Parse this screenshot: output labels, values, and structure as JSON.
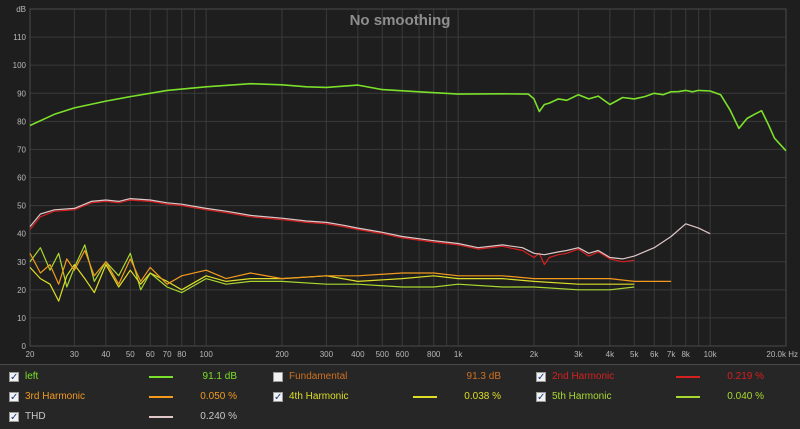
{
  "chart_data": {
    "type": "line",
    "title": "No smoothing",
    "ylabel": "dB",
    "xlabel": "Hz",
    "xscale": "log",
    "xlim": [
      20,
      20000
    ],
    "ylim": [
      0,
      120
    ],
    "x_ticks": [
      {
        "v": 20,
        "label": "20"
      },
      {
        "v": 30,
        "label": "30"
      },
      {
        "v": 40,
        "label": "40"
      },
      {
        "v": 50,
        "label": "50"
      },
      {
        "v": 60,
        "label": "60"
      },
      {
        "v": 70,
        "label": "70"
      },
      {
        "v": 80,
        "label": "80"
      },
      {
        "v": 100,
        "label": "100"
      },
      {
        "v": 200,
        "label": "200"
      },
      {
        "v": 300,
        "label": "300"
      },
      {
        "v": 400,
        "label": "400"
      },
      {
        "v": 500,
        "label": "500"
      },
      {
        "v": 600,
        "label": "600"
      },
      {
        "v": 800,
        "label": "800"
      },
      {
        "v": 1000,
        "label": "1k"
      },
      {
        "v": 2000,
        "label": "2k"
      },
      {
        "v": 3000,
        "label": "3k"
      },
      {
        "v": 4000,
        "label": "4k"
      },
      {
        "v": 5000,
        "label": "5k"
      },
      {
        "v": 6000,
        "label": "6k"
      },
      {
        "v": 7000,
        "label": "7k"
      },
      {
        "v": 8000,
        "label": "8k"
      },
      {
        "v": 10000,
        "label": "10k"
      },
      {
        "v": 20000,
        "label": "20.0k Hz"
      }
    ],
    "y_ticks": [
      {
        "v": 0,
        "label": "0"
      },
      {
        "v": 10,
        "label": "10"
      },
      {
        "v": 20,
        "label": "20"
      },
      {
        "v": 30,
        "label": "30"
      },
      {
        "v": 40,
        "label": "40"
      },
      {
        "v": 50,
        "label": "50"
      },
      {
        "v": 60,
        "label": "60"
      },
      {
        "v": 70,
        "label": "70"
      },
      {
        "v": 80,
        "label": "80"
      },
      {
        "v": 90,
        "label": "90"
      },
      {
        "v": 100,
        "label": "100"
      },
      {
        "v": 110,
        "label": "110"
      },
      {
        "v": 120,
        "label": "dB"
      }
    ],
    "grid": true,
    "legend_position": "bottom",
    "series": [
      {
        "name": "left",
        "color": "#7be02a",
        "value": "91.1 dB",
        "checked": true,
        "x": [
          20,
          25,
          30,
          40,
          50,
          70,
          100,
          150,
          200,
          250,
          300,
          400,
          500,
          700,
          1000,
          1500,
          1900,
          2000,
          2100,
          2200,
          2300,
          2500,
          2700,
          3000,
          3300,
          3600,
          4000,
          4500,
          5000,
          5500,
          6000,
          6500,
          7000,
          7500,
          8000,
          8500,
          9000,
          10000,
          11000,
          12000,
          13000,
          14000,
          15000,
          16000,
          17000,
          18000,
          20000
        ],
        "y": [
          78.5,
          82.5,
          84.8,
          87.2,
          88.8,
          91,
          92.3,
          93.4,
          93,
          92.3,
          92.1,
          92.9,
          91.3,
          90.5,
          89.7,
          89.8,
          89.7,
          88,
          83.5,
          86,
          86.5,
          88,
          87.5,
          89.5,
          88,
          89,
          86,
          88.5,
          88,
          88.8,
          90,
          89.5,
          90.5,
          90.6,
          91,
          90.5,
          91,
          90.8,
          89.5,
          84,
          77.5,
          81,
          82.5,
          83.8,
          79,
          74,
          69.5
        ]
      },
      {
        "name": "Fundamental",
        "color": "#8a8a8a",
        "value": "91.3 dB",
        "checked": false,
        "x": [],
        "y": []
      },
      {
        "name": "2nd Harmonic",
        "color": "#d42020",
        "value": "0.219 %",
        "checked": true,
        "x": [
          20,
          22,
          25,
          30,
          35,
          40,
          45,
          50,
          60,
          70,
          80,
          100,
          120,
          150,
          200,
          250,
          300,
          350,
          400,
          500,
          600,
          800,
          1000,
          1200,
          1500,
          1800,
          2000,
          2100,
          2200,
          2300,
          2500,
          2700,
          3000,
          3300,
          3600,
          4000,
          4500,
          5000
        ],
        "y": [
          41.5,
          46,
          48,
          48.5,
          51,
          51.5,
          51,
          52,
          51.5,
          50.5,
          50,
          48.5,
          47.5,
          46,
          45,
          44,
          43.5,
          42.5,
          41.5,
          40,
          38.5,
          37,
          36,
          34.5,
          35.5,
          34,
          31.5,
          33,
          29,
          31.5,
          32.5,
          33,
          34.5,
          32,
          33.5,
          31,
          30,
          30.5
        ]
      },
      {
        "name": "3rd Harmonic",
        "color": "#f29a1e",
        "value": "0.050 %",
        "checked": true,
        "x": [
          20,
          22,
          24,
          26,
          28,
          30,
          33,
          36,
          40,
          45,
          50,
          55,
          60,
          70,
          80,
          100,
          120,
          150,
          200,
          300,
          400,
          600,
          800,
          1000,
          1500,
          2000,
          3000,
          4000,
          5000,
          6000,
          7000
        ],
        "y": [
          33,
          26,
          29,
          22,
          31,
          27,
          34,
          25,
          30,
          22,
          31,
          23,
          28,
          22,
          25,
          27,
          24,
          26,
          24,
          25,
          25,
          26,
          26,
          25,
          25,
          24,
          24,
          24,
          23,
          23,
          23
        ]
      },
      {
        "name": "4th Harmonic",
        "color": "#dede28",
        "value": "0.038 %",
        "checked": true,
        "x": [
          20,
          22,
          24,
          26,
          28,
          30,
          33,
          36,
          40,
          45,
          50,
          55,
          60,
          70,
          80,
          100,
          120,
          150,
          200,
          300,
          400,
          600,
          800,
          1000,
          1500,
          2000,
          3000,
          4000,
          5000
        ],
        "y": [
          28,
          24,
          22,
          16,
          25,
          29,
          24,
          19,
          29,
          21,
          27,
          22,
          26,
          23,
          20,
          25,
          23,
          24,
          24,
          25,
          23,
          24,
          25,
          24,
          24,
          23,
          22,
          22,
          22
        ]
      },
      {
        "name": "5th Harmonic",
        "color": "#a8d830",
        "value": "0.040 %",
        "checked": true,
        "x": [
          20,
          22,
          24,
          26,
          28,
          30,
          33,
          36,
          40,
          45,
          50,
          55,
          60,
          70,
          80,
          100,
          120,
          150,
          200,
          300,
          400,
          600,
          800,
          1000,
          1500,
          2000,
          3000,
          4000,
          5000
        ],
        "y": [
          30,
          35,
          27,
          33,
          21,
          28,
          36,
          23,
          30,
          25,
          33,
          20,
          26,
          21,
          19,
          24,
          22,
          23,
          23,
          22,
          22,
          21,
          21,
          22,
          21,
          21,
          20,
          20,
          21
        ]
      },
      {
        "name": "THD",
        "color": "#e0c8c8",
        "value": "0.240 %",
        "checked": true,
        "x": [
          20,
          22,
          25,
          30,
          35,
          40,
          45,
          50,
          60,
          70,
          80,
          100,
          120,
          150,
          200,
          250,
          300,
          350,
          400,
          500,
          600,
          800,
          1000,
          1200,
          1500,
          1800,
          2000,
          2200,
          2500,
          2700,
          3000,
          3300,
          3600,
          4000,
          4500,
          5000,
          6000,
          7000,
          8000,
          9000,
          10000
        ],
        "y": [
          42.5,
          47,
          48.5,
          49,
          51.5,
          52,
          51.5,
          52.5,
          52,
          51,
          50.5,
          49,
          48,
          46.5,
          45.5,
          44.5,
          44,
          43,
          42,
          40.5,
          39,
          37.5,
          36.5,
          35,
          36,
          35,
          33,
          32.5,
          33.5,
          34,
          35,
          33,
          34,
          31.5,
          31,
          32,
          35,
          39,
          43.5,
          42,
          40
        ]
      }
    ]
  }
}
